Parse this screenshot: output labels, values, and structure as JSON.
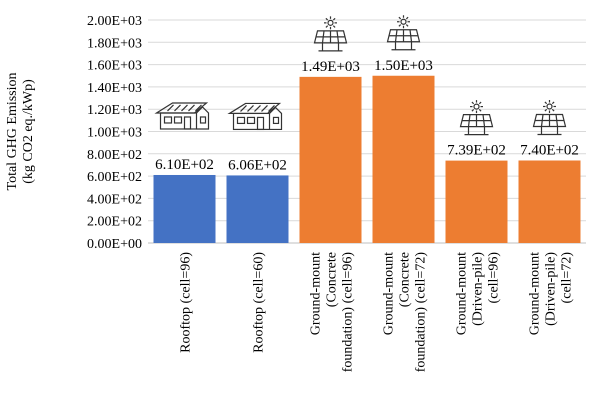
{
  "chart_data": {
    "type": "bar",
    "ylabel": [
      "Total GHG Emission",
      "(kg CO2 eq./kWp)"
    ],
    "ylim": [
      0,
      2000
    ],
    "ytick_values": [
      0,
      200,
      400,
      600,
      800,
      1000,
      1200,
      1400,
      1600,
      1800,
      2000
    ],
    "ytick_labels": [
      "0.00E+00",
      "2.00E+02",
      "4.00E+02",
      "6.00E+02",
      "8.00E+02",
      "1.00E+03",
      "1.20E+03",
      "1.40E+03",
      "1.60E+03",
      "1.80E+03",
      "2.00E+03"
    ],
    "grid": true,
    "categories": [
      [
        "Rooftop (cell=96)"
      ],
      [
        "Rooftop (cell=60)"
      ],
      [
        "Ground-mount",
        "(Concrete",
        "foundation) (cell=96)"
      ],
      [
        "Ground-mount",
        "(Concrete",
        "foundation) (cell=72)"
      ],
      [
        "Ground-mount",
        "(Driven-pile)",
        "(cell=96)"
      ],
      [
        "Ground-mount",
        "(Driven-pile)",
        "(cell=72)"
      ]
    ],
    "values": [
      610,
      606,
      1490,
      1500,
      739,
      740
    ],
    "data_labels": [
      "6.10E+02",
      "6.06E+02",
      "1.49E+03",
      "1.50E+03",
      "7.39E+02",
      "7.40E+02"
    ],
    "bar_colors": [
      "#4472c4",
      "#4472c4",
      "#ed7d31",
      "#ed7d31",
      "#ed7d31",
      "#ed7d31"
    ],
    "bar_icons": [
      "house-icon",
      "house-icon",
      "solar-panel-icon",
      "solar-panel-icon",
      "solar-panel-icon",
      "solar-panel-icon"
    ]
  }
}
